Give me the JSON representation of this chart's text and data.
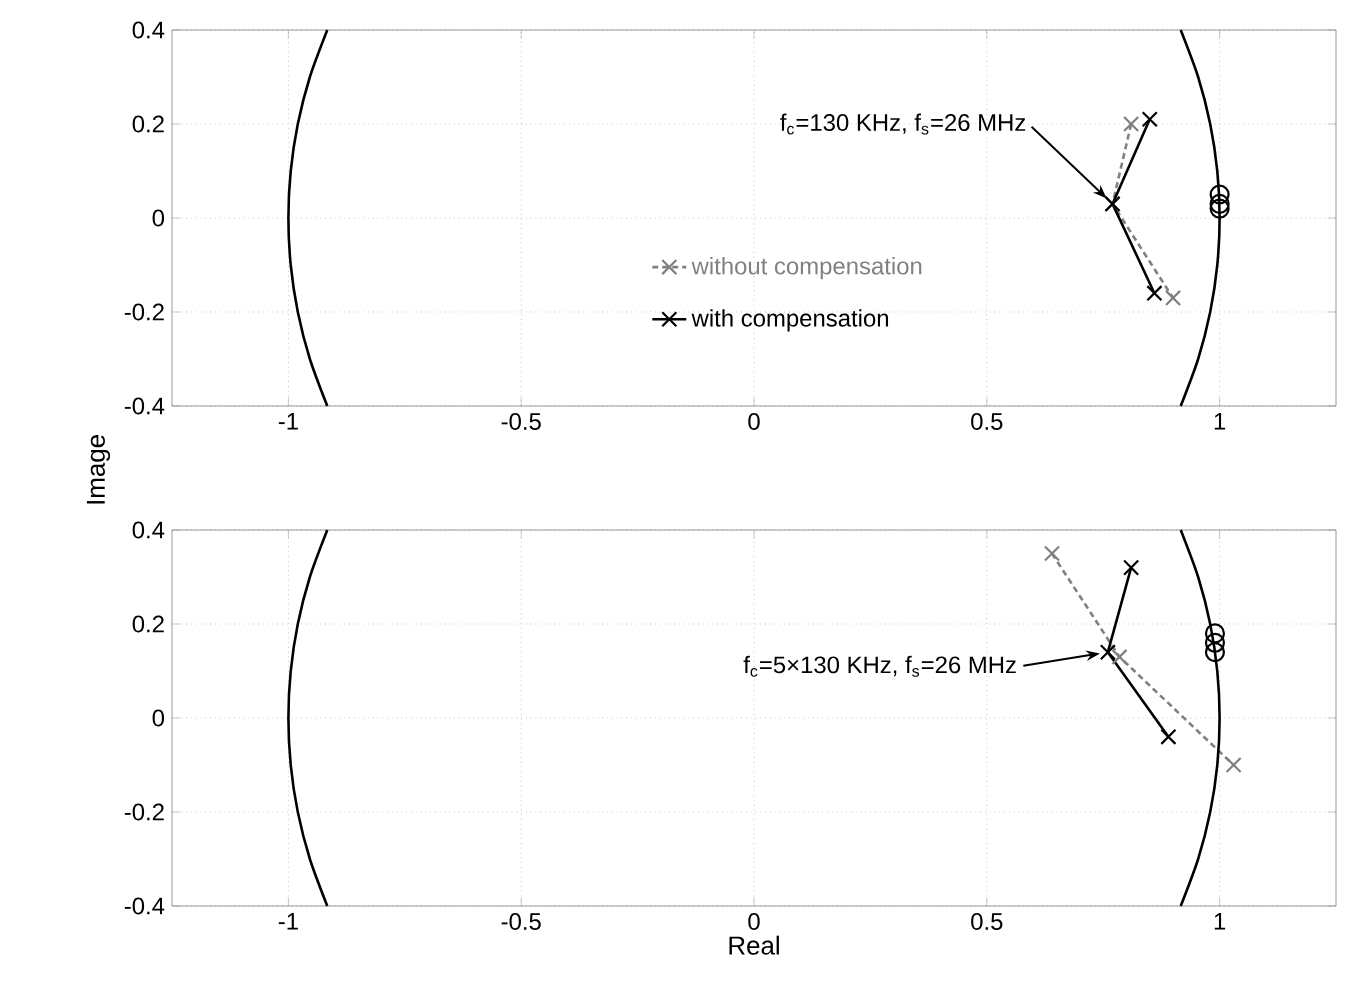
{
  "chart_data": [
    {
      "type": "line",
      "ylabel": "Image",
      "xlim": [
        -1.25,
        1.25
      ],
      "ylim": [
        -0.4,
        0.4
      ],
      "xticks": [
        -1,
        -0.5,
        0,
        0.5,
        1
      ],
      "yticks": [
        -0.4,
        -0.2,
        0,
        0.2,
        0.4
      ],
      "grid": true,
      "legend": "center",
      "annotations": [
        {
          "text": "f$_{c}$=130 KHz, f$_{s}$=26 MHz",
          "x": 0.77,
          "y": 0.03
        }
      ],
      "series": [
        {
          "name": "without compensation",
          "color": "#808080",
          "line_style": "dashed",
          "marker": "cross",
          "x": [
            0.81,
            0.77,
            0.9
          ],
          "values": [
            0.2,
            0.03,
            -0.17
          ]
        },
        {
          "name": "with compensation",
          "color": "#000000",
          "line_style": "solid",
          "marker": "cross",
          "x": [
            0.85,
            0.77,
            0.86
          ],
          "values": [
            0.21,
            0.03,
            -0.16
          ]
        },
        {
          "type": "scatter",
          "color": "#000000",
          "marker": "circle",
          "x": [
            1,
            1,
            1
          ],
          "values": [
            0.05,
            0.03,
            0.02
          ]
        },
        {
          "color": "#000000",
          "line_style": "solid",
          "marker": "none",
          "x": [
            -0.9165,
            -0.9539,
            -0.9798,
            -0.995,
            -1,
            -0.995,
            -0.9798,
            -0.9539,
            -0.9165
          ],
          "values": [
            0.4,
            0.3,
            0.2,
            0.1,
            0,
            -0.1,
            -0.2,
            -0.3,
            -0.4
          ]
        },
        {
          "color": "#000000",
          "line_style": "solid",
          "marker": "none",
          "x": [
            0.9165,
            0.9539,
            0.9798,
            0.995,
            1,
            0.995,
            0.9798,
            0.9539,
            0.9165
          ],
          "values": [
            0.4,
            0.3,
            0.2,
            0.1,
            0,
            -0.1,
            -0.2,
            -0.3,
            -0.4
          ]
        }
      ]
    },
    {
      "type": "line",
      "xlabel": "Real",
      "xlim": [
        -1.25,
        1.25
      ],
      "ylim": [
        -0.4,
        0.4
      ],
      "xticks": [
        -1,
        -0.5,
        0,
        0.5,
        1
      ],
      "yticks": [
        -0.4,
        -0.2,
        0,
        0.2,
        0.4
      ],
      "grid": true,
      "annotations": [
        {
          "text": "f$_{c}$=5×130 KHz, f$_{s}$=26 MHz",
          "x": 0.76,
          "y": 0.14
        }
      ],
      "series": [
        {
          "color": "#808080",
          "line_style": "dashed",
          "marker": "cross",
          "x": [
            0.64,
            0.785,
            1.03
          ],
          "values": [
            0.35,
            0.13,
            -0.1
          ]
        },
        {
          "color": "#000000",
          "line_style": "solid",
          "marker": "cross",
          "x": [
            0.81,
            0.76,
            0.89
          ],
          "values": [
            0.32,
            0.14,
            -0.04
          ]
        },
        {
          "type": "scatter",
          "color": "#000000",
          "marker": "circle",
          "x": [
            0.99,
            0.99,
            0.99
          ],
          "values": [
            0.18,
            0.16,
            0.14
          ]
        },
        {
          "color": "#000000",
          "line_style": "solid",
          "marker": "none",
          "x": [
            -0.9165,
            -0.9539,
            -0.9798,
            -0.995,
            -1,
            -0.995,
            -0.9798,
            -0.9539,
            -0.9165
          ],
          "values": [
            0.4,
            0.3,
            0.2,
            0.1,
            0,
            -0.1,
            -0.2,
            -0.3,
            -0.4
          ]
        },
        {
          "color": "#000000",
          "line_style": "solid",
          "marker": "none",
          "x": [
            0.9165,
            0.9539,
            0.9798,
            0.995,
            1,
            0.995,
            0.9798,
            0.9539,
            0.9165
          ],
          "values": [
            0.4,
            0.3,
            0.2,
            0.1,
            0,
            -0.1,
            -0.2,
            -0.3,
            -0.4
          ]
        }
      ]
    }
  ]
}
